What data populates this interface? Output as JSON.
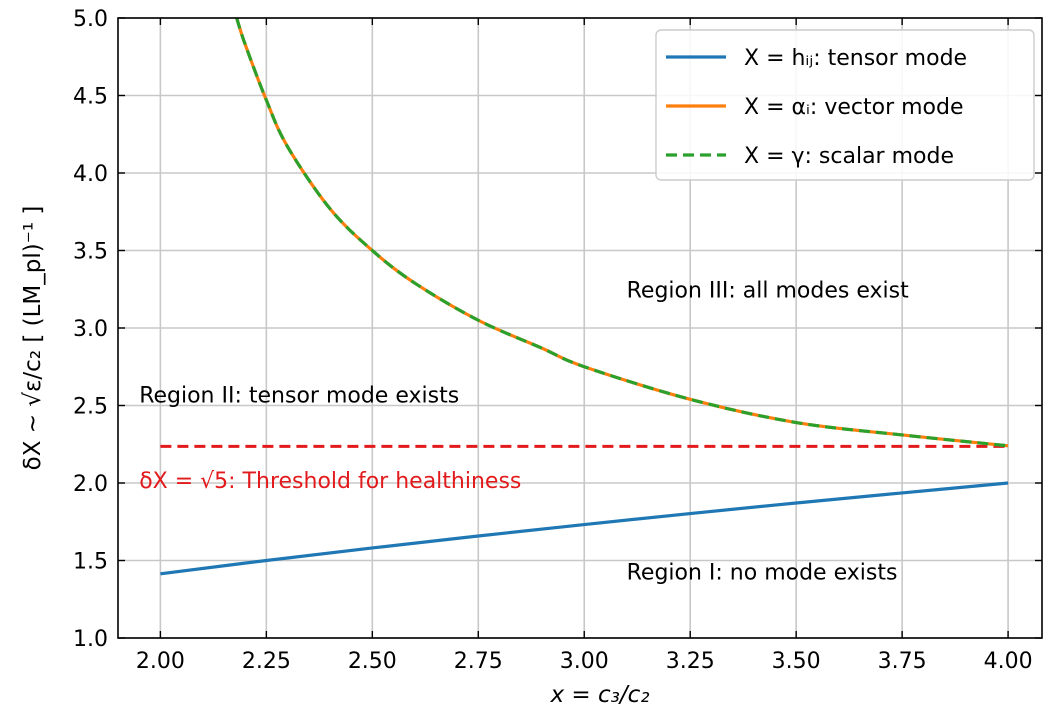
{
  "chart_data": {
    "type": "line",
    "xlabel": "x = c₃/c₂",
    "ylabel": "δX ~ √ε/c₂   [ (LM_pl)⁻¹ ]",
    "xlim": [
      1.9,
      4.08
    ],
    "ylim": [
      1.0,
      5.0
    ],
    "xticks": [
      "2.00",
      "2.25",
      "2.50",
      "2.75",
      "3.00",
      "3.25",
      "3.50",
      "3.75",
      "4.00"
    ],
    "yticks": [
      "1.0",
      "1.5",
      "2.0",
      "2.5",
      "3.0",
      "3.5",
      "4.0",
      "4.5",
      "5.0"
    ],
    "grid": true,
    "legend_position": "top-right",
    "series": [
      {
        "name": "X = hᵢⱼ: tensor mode",
        "color": "#1f77b4",
        "style": "solid",
        "x": [
          2.0,
          2.25,
          2.5,
          2.75,
          3.0,
          3.25,
          3.5,
          3.75,
          4.0
        ],
        "y": [
          1.414,
          1.5,
          1.581,
          1.658,
          1.732,
          1.803,
          1.871,
          1.936,
          2.0
        ]
      },
      {
        "name": "X = αᵢ: vector mode",
        "color": "#ff7f0e",
        "style": "solid",
        "x": [
          2.18,
          2.2,
          2.25,
          2.3,
          2.4,
          2.5,
          2.6,
          2.75,
          2.9,
          3.0,
          3.25,
          3.5,
          3.75,
          4.0
        ],
        "y": [
          5.0,
          4.83,
          4.47,
          4.17,
          3.77,
          3.5,
          3.29,
          3.05,
          2.87,
          2.75,
          2.54,
          2.39,
          2.31,
          2.24
        ]
      },
      {
        "name": "X = γ: scalar mode",
        "color": "#2ca02c",
        "style": "dashed",
        "x": [
          2.18,
          2.2,
          2.25,
          2.3,
          2.4,
          2.5,
          2.6,
          2.75,
          2.9,
          3.0,
          3.25,
          3.5,
          3.75,
          4.0
        ],
        "y": [
          5.0,
          4.83,
          4.47,
          4.17,
          3.77,
          3.5,
          3.29,
          3.05,
          2.87,
          2.75,
          2.54,
          2.39,
          2.31,
          2.24
        ]
      }
    ],
    "threshold": {
      "y": 2.236,
      "x_range": [
        2.0,
        4.0
      ],
      "color": "#e31a1c",
      "label": "δX = √5: Threshold for healthiness"
    },
    "annotations": [
      {
        "text": "Region III: all modes exist",
        "x": 3.1,
        "y": 3.25
      },
      {
        "text": "Region II: tensor mode exists",
        "x": 1.95,
        "y": 2.57
      },
      {
        "text": "Region I: no mode exists",
        "x": 3.1,
        "y": 1.43
      }
    ]
  }
}
